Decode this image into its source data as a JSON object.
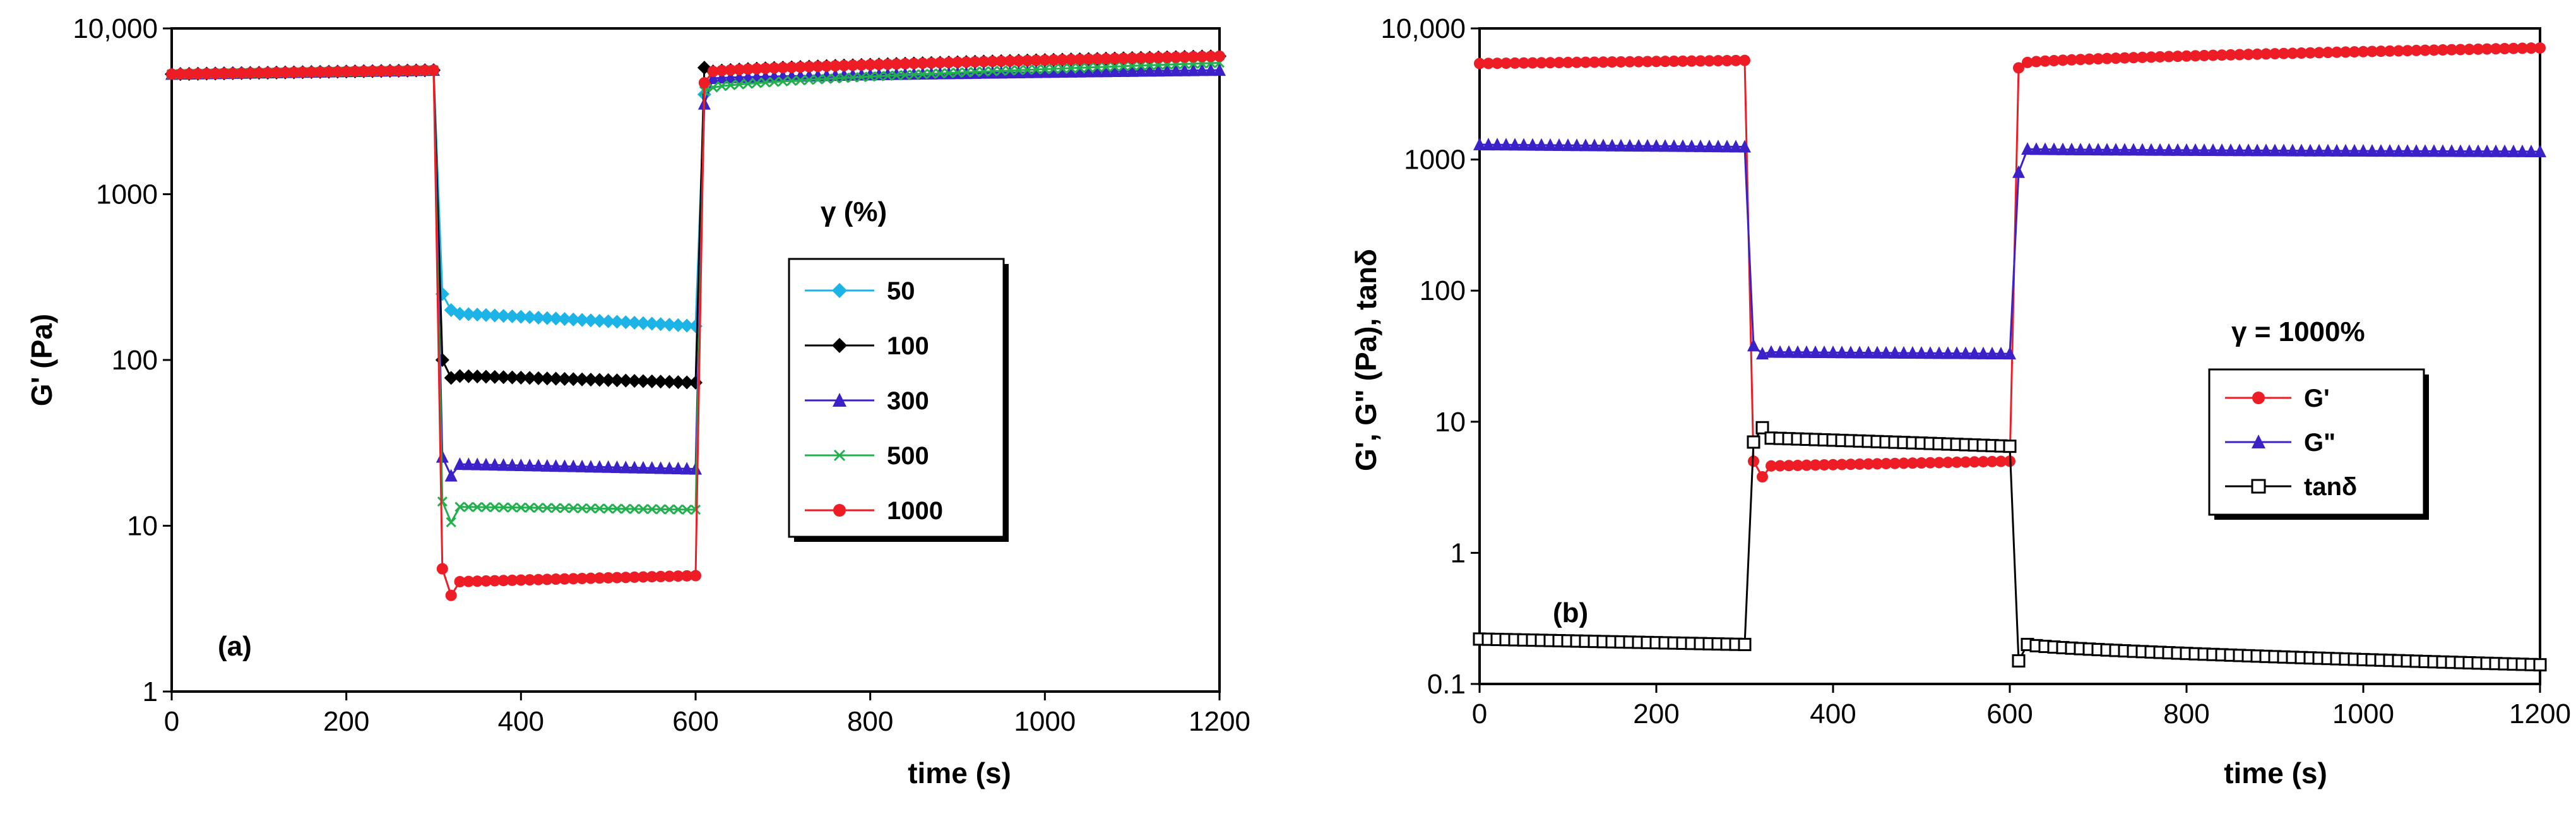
{
  "chart_data": [
    {
      "type": "line",
      "panel": "(a)",
      "xlabel": "time (s)",
      "ylabel": "G' (Pa)",
      "yscale": "log",
      "xlim": [
        0,
        1200
      ],
      "ylim": [
        1,
        10000
      ],
      "xticks": [
        0,
        200,
        400,
        600,
        800,
        1000,
        1200
      ],
      "xtick_labels": [
        "0",
        "200",
        "400",
        "600",
        "800",
        "1000",
        "1200"
      ],
      "yticks": [
        1,
        10,
        100,
        1000,
        10000
      ],
      "ytick_labels": [
        "1",
        "10",
        "100",
        "1000",
        "10,000"
      ],
      "legend_title": "γ  (%)",
      "legend_position": "center-right",
      "series": [
        {
          "name": "50",
          "color": "#1cb4e6",
          "marker": "diamond",
          "low": 160,
          "dip": 200,
          "first": 250,
          "rec": 4000
        },
        {
          "name": "100",
          "color": "#000000",
          "marker": "diamond",
          "low": 73,
          "dip": 78,
          "first": 100,
          "rec": 5800
        },
        {
          "name": "300",
          "color": "#3b22c8",
          "marker": "triangle",
          "low": 22,
          "dip": 20,
          "first": 26,
          "rec": 3500
        },
        {
          "name": "500",
          "color": "#22b04e",
          "marker": "x",
          "low": 12.5,
          "dip": 10.5,
          "first": 14,
          "rec": 4200
        },
        {
          "name": "1000",
          "color": "#ee1c24",
          "marker": "circle",
          "low": 5.0,
          "dip": 3.8,
          "first": 5.5,
          "rec": 4700
        }
      ],
      "phases": {
        "pre_value": 5300,
        "pre_end_value": 5600,
        "end_value": 6800,
        "step_down_t": 300,
        "step_up_t": 600
      }
    },
    {
      "type": "line",
      "panel": "(b)",
      "xlabel": "time (s)",
      "ylabel": "G', G\" (Pa), tanδ",
      "yscale": "log",
      "xlim": [
        0,
        1200
      ],
      "ylim": [
        0.1,
        10000
      ],
      "xticks": [
        0,
        200,
        400,
        600,
        800,
        1000,
        1200
      ],
      "xtick_labels": [
        "0",
        "200",
        "400",
        "600",
        "800",
        "1000",
        "1200"
      ],
      "yticks": [
        0.1,
        1,
        10,
        100,
        1000,
        10000
      ],
      "ytick_labels": [
        "0.1",
        "1",
        "10",
        "100",
        "1000",
        "10,000"
      ],
      "annotation": "γ  = 1000%",
      "legend_position": "center-right",
      "series": [
        {
          "name": "G'",
          "color": "#ee1c24",
          "marker": "circle",
          "pre": 5400,
          "pre_end": 5700,
          "first": 5.0,
          "dip": 3.8,
          "low": 5.0,
          "rec": 5000,
          "end": 7100
        },
        {
          "name": "G\"",
          "color": "#3b22c8",
          "marker": "triangle",
          "pre": 1300,
          "pre_end": 1250,
          "first": 38,
          "dip": 33,
          "low": 33,
          "rec": 800,
          "end": 1150
        },
        {
          "name": "tanδ",
          "color": "#000000",
          "marker": "square-open",
          "pre": 0.22,
          "pre_end": 0.2,
          "first": 7.0,
          "dip": 9.0,
          "low": 6.5,
          "rec": 0.15,
          "end": 0.14
        }
      ]
    }
  ]
}
